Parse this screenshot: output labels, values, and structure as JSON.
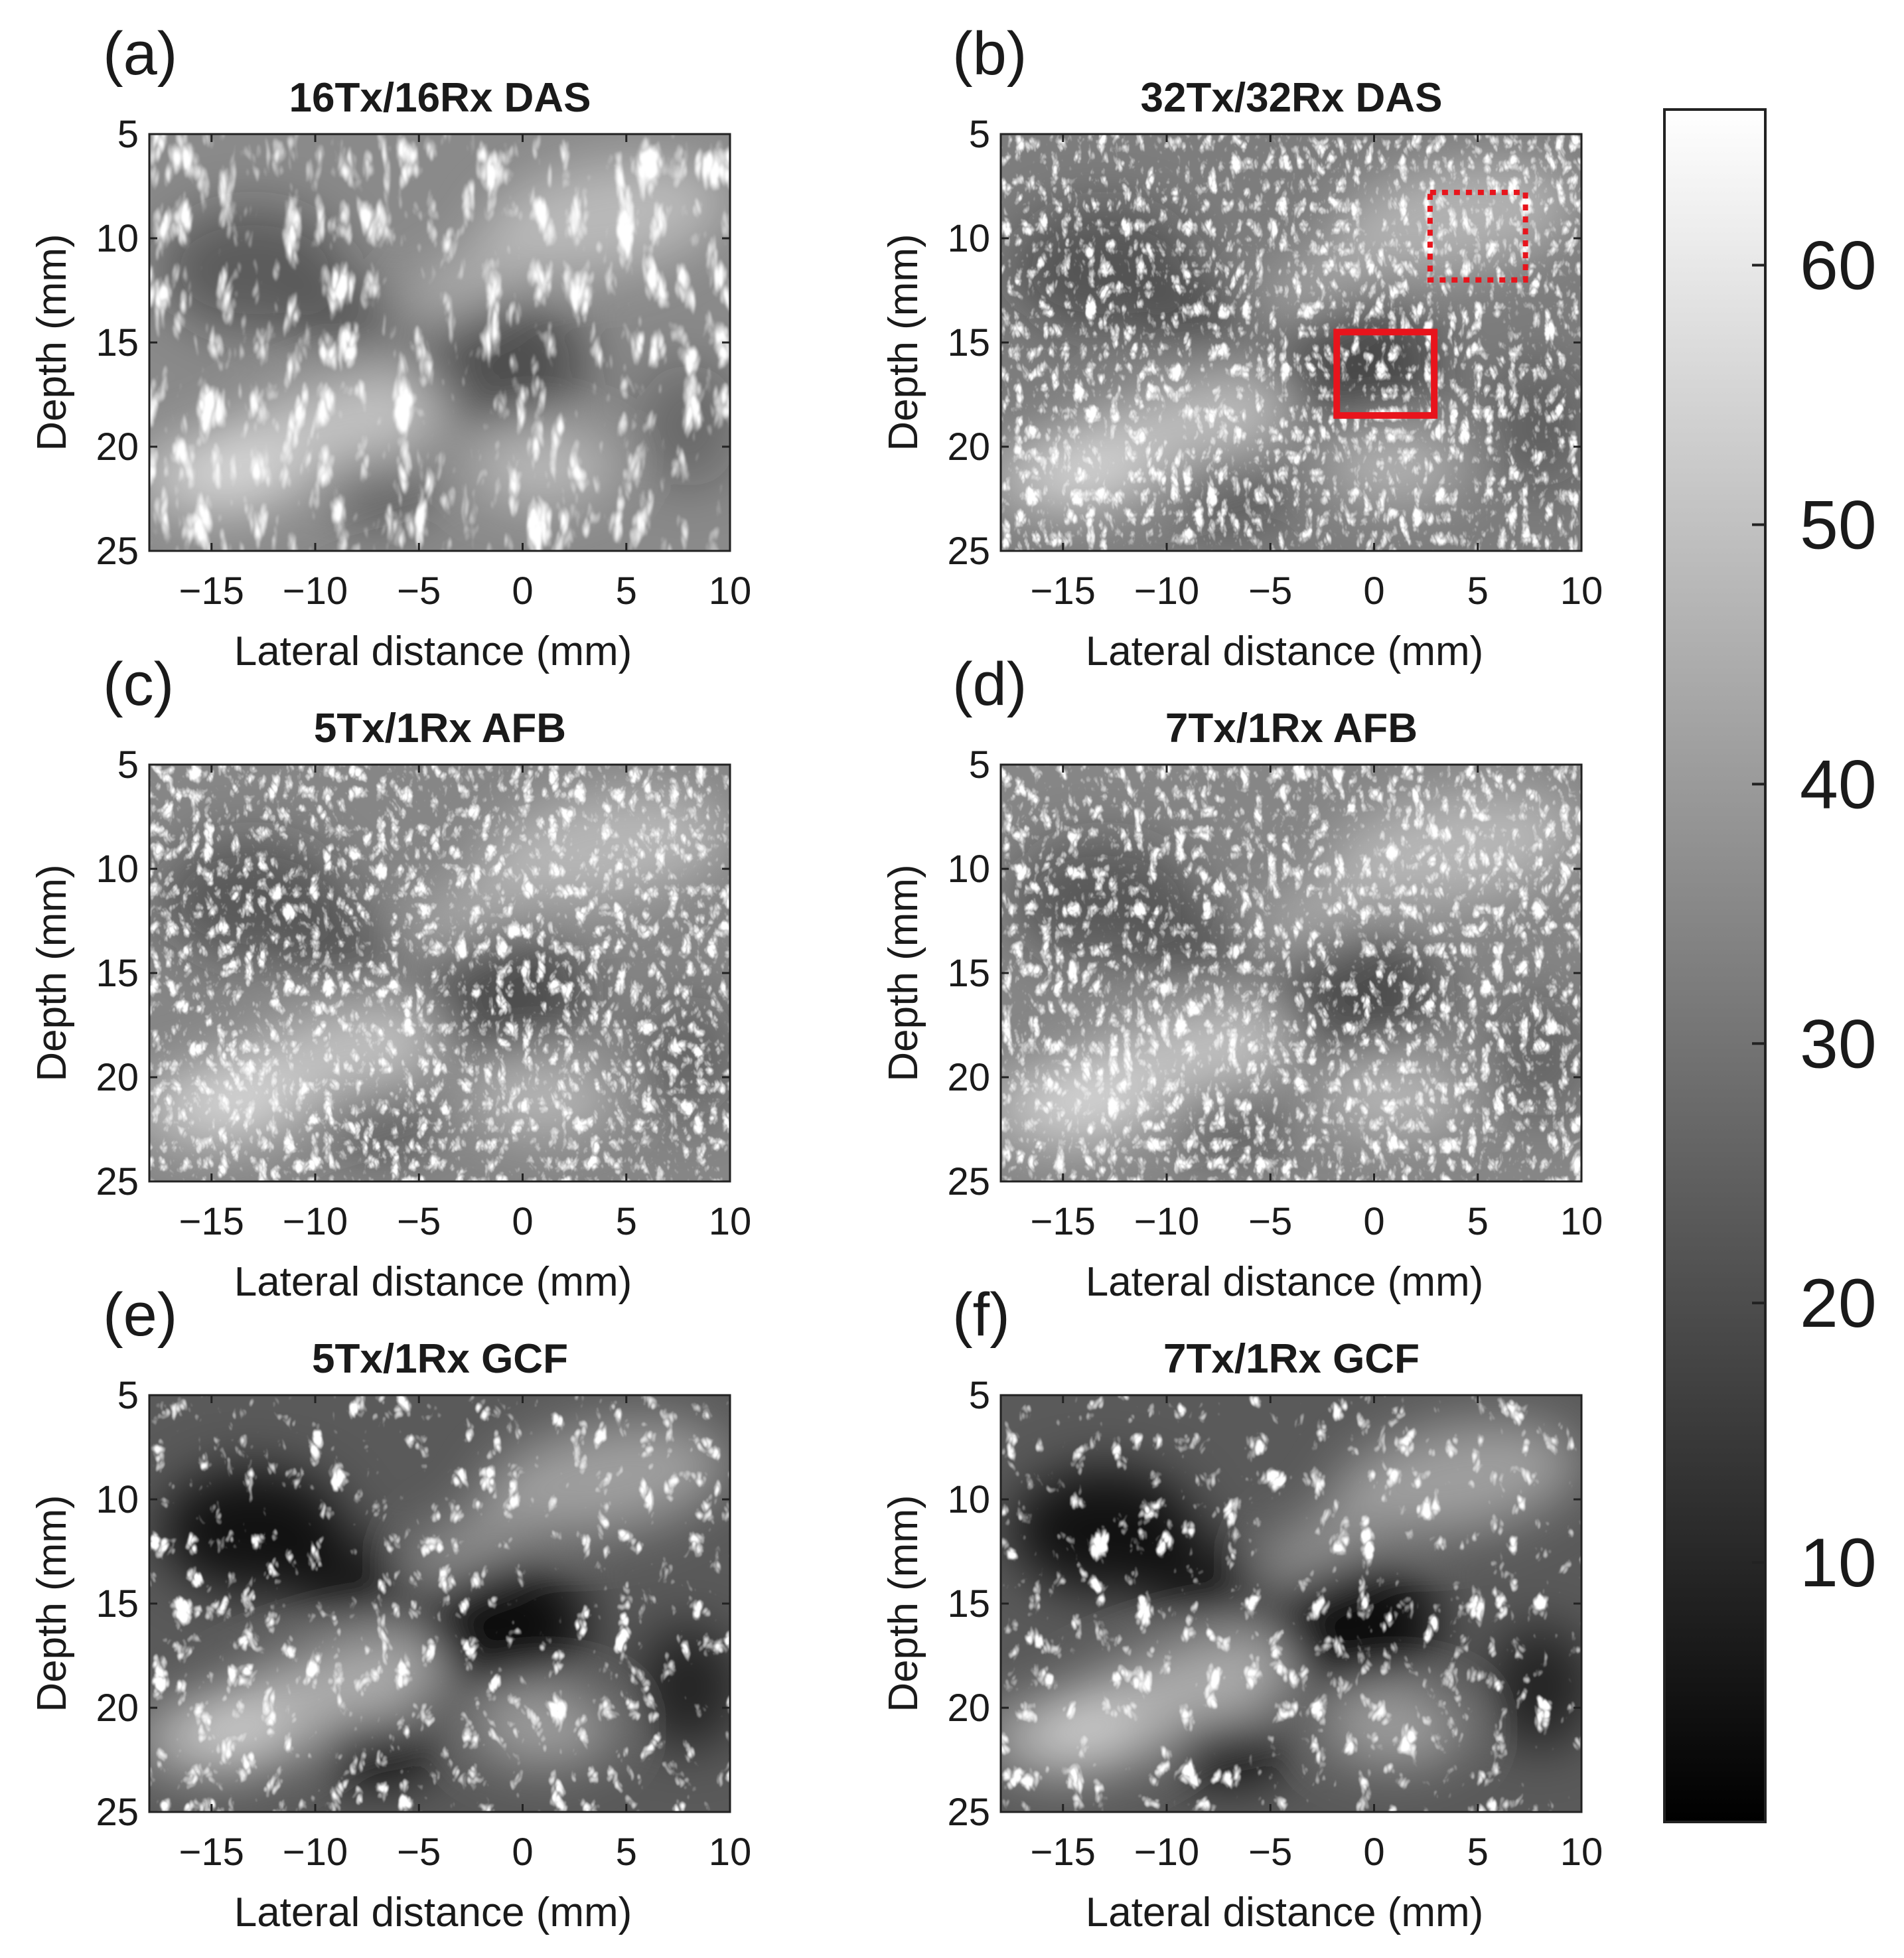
{
  "panels": [
    {
      "letter": "(a)",
      "title": "16Tx/16Rx DAS",
      "style": "das16",
      "seed": 11
    },
    {
      "letter": "(b)",
      "title": "32Tx/32Rx DAS",
      "style": "das32",
      "seed": 23,
      "rois": [
        {
          "kind": "dotted",
          "x": [
            2.7,
            7.3
          ],
          "y": [
            7.8,
            12.0
          ]
        },
        {
          "kind": "solid",
          "x": [
            -1.8,
            2.9
          ],
          "y": [
            14.5,
            18.5
          ]
        }
      ]
    },
    {
      "letter": "(c)",
      "title": "5Tx/1Rx AFB",
      "style": "afb",
      "seed": 37
    },
    {
      "letter": "(d)",
      "title": "7Tx/1Rx AFB",
      "style": "afb",
      "seed": 41
    },
    {
      "letter": "(e)",
      "title": "5Tx/1Rx GCF",
      "style": "gcf",
      "seed": 53
    },
    {
      "letter": "(f)",
      "title": "7Tx/1Rx GCF",
      "style": "gcf",
      "seed": 67
    }
  ],
  "axes": {
    "x_label": "Lateral distance (mm)",
    "y_label": "Depth (mm)",
    "x_range": [
      -18,
      10
    ],
    "y_range": [
      5,
      25
    ],
    "x_ticks": [
      "-15",
      "-10",
      "-5",
      "0",
      "5",
      "10"
    ],
    "y_ticks": [
      "5",
      "10",
      "15",
      "20",
      "25"
    ]
  },
  "colorbar": {
    "ticks": [
      "10",
      "20",
      "30",
      "40",
      "50",
      "60"
    ],
    "range": [
      0,
      66
    ],
    "colormap": "gray"
  },
  "roi_color": "#e8141c"
}
